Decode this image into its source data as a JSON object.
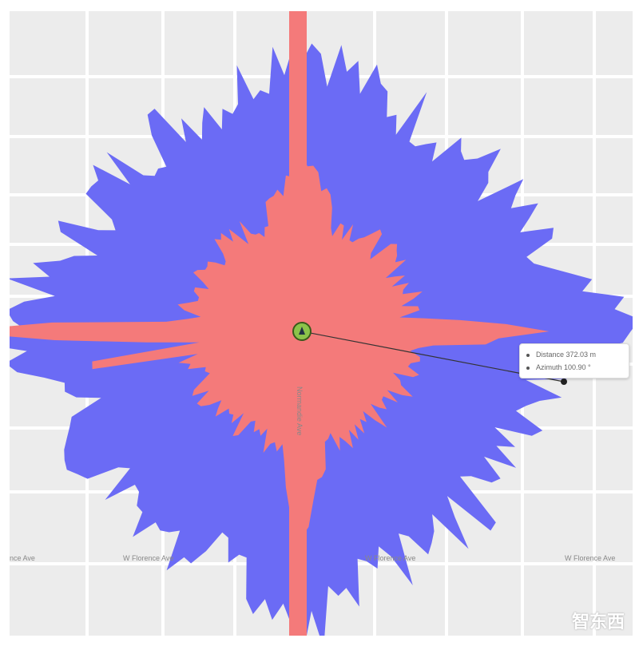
{
  "map": {
    "colors": {
      "weak_coverage": "#6b6bf5",
      "strong_coverage": "#f47a7a",
      "background": "#ececec",
      "roads": "#ffffff"
    },
    "streets": {
      "florence_left": "W Florence Ave",
      "florence_mid": "W Florence Ave",
      "florence_right": "W Florence Ave",
      "florence_far_left": "nce Ave",
      "normandie": "Normandie Ave"
    },
    "site_marker_icon": "antenna-icon",
    "measurement": {
      "distance_label": "Distance 372.03 m",
      "azimuth_label": "Azimuth 100.90 °"
    },
    "watermark": "智东西"
  }
}
